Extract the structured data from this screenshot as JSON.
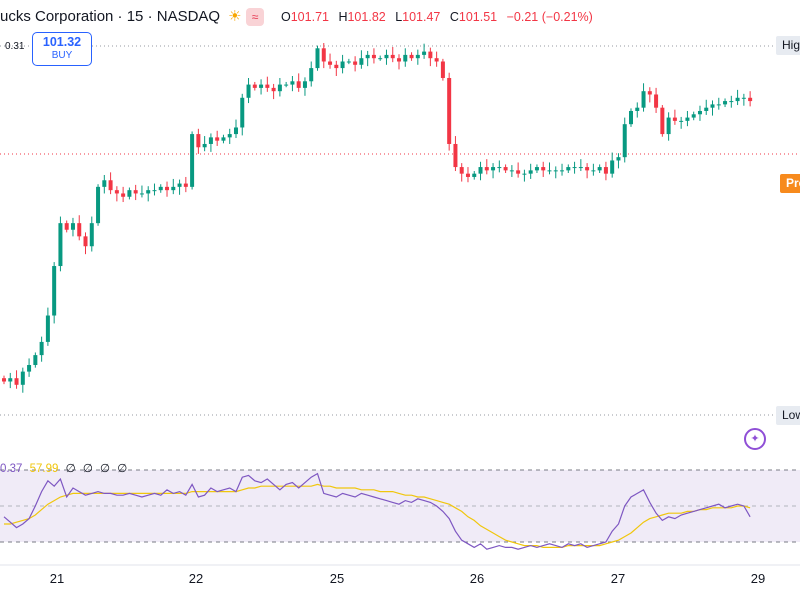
{
  "header": {
    "symbol_title": "ucks Corporation · 15 · NASDAQ",
    "icons": [
      "sun-icon",
      "session-icon"
    ],
    "ohlc": {
      "o_label": "O",
      "o_value": "101.71",
      "h_label": "H",
      "h_value": "101.82",
      "l_label": "L",
      "l_value": "101.47",
      "c_label": "C",
      "c_value": "101.51",
      "change": "−0.21 (−0.21%)"
    }
  },
  "order_widget": {
    "tick_value": "0.31",
    "price": "101.32",
    "label": "BUY"
  },
  "price_labels": {
    "high": "High",
    "low": "Low",
    "pre": "Pre"
  },
  "rsi": {
    "value": "0.37",
    "ma_value": "57.99",
    "empty_values": [
      "∅",
      "∅",
      "∅",
      "∅"
    ]
  },
  "colors": {
    "up": "#089981",
    "down": "#f23645",
    "rsi_line": "#7e57c2",
    "rsi_ma": "#f0c60d",
    "band": "#ede7f6"
  },
  "chart_data": {
    "type": "line",
    "x_ticks": [
      "21",
      "22",
      "25",
      "26",
      "27",
      "29"
    ],
    "price_series": [
      100.95,
      100.96,
      100.94,
      100.98,
      101.0,
      101.03,
      101.07,
      101.15,
      101.3,
      101.43,
      101.41,
      101.43,
      101.39,
      101.36,
      101.43,
      101.54,
      101.56,
      101.53,
      101.52,
      101.51,
      101.53,
      101.52,
      101.52,
      101.53,
      101.53,
      101.54,
      101.53,
      101.54,
      101.55,
      101.54,
      101.7,
      101.66,
      101.67,
      101.69,
      101.68,
      101.69,
      101.7,
      101.72,
      101.81,
      101.85,
      101.84,
      101.85,
      101.84,
      101.83,
      101.85,
      101.85,
      101.86,
      101.84,
      101.86,
      101.9,
      101.96,
      101.92,
      101.91,
      101.9,
      101.92,
      101.92,
      101.91,
      101.93,
      101.94,
      101.93,
      101.93,
      101.94,
      101.93,
      101.92,
      101.94,
      101.93,
      101.94,
      101.95,
      101.93,
      101.92,
      101.87,
      101.67,
      101.6,
      101.58,
      101.57,
      101.58,
      101.6,
      101.59,
      101.6,
      101.6,
      101.59,
      101.59,
      101.58,
      101.58,
      101.59,
      101.6,
      101.59,
      101.59,
      101.59,
      101.59,
      101.6,
      101.6,
      101.6,
      101.59,
      101.59,
      101.6,
      101.58,
      101.62,
      101.63,
      101.73,
      101.77,
      101.78,
      101.83,
      101.82,
      101.78,
      101.7,
      101.75,
      101.74,
      101.74,
      101.75,
      101.76,
      101.77,
      101.78,
      101.79,
      101.79,
      101.8,
      101.8,
      101.81,
      101.81,
      101.8
    ],
    "rsi_series": [
      44,
      41,
      38,
      40,
      43,
      50,
      58,
      64,
      61,
      65,
      55,
      60,
      58,
      56,
      57,
      58,
      57,
      57,
      56,
      56,
      57,
      56,
      55,
      56,
      57,
      56,
      59,
      57,
      58,
      56,
      62,
      55,
      56,
      60,
      58,
      59,
      60,
      58,
      66,
      67,
      64,
      63,
      65,
      62,
      59,
      62,
      63,
      60,
      63,
      66,
      68,
      57,
      56,
      55,
      57,
      56,
      55,
      57,
      56,
      55,
      54,
      53,
      52,
      51,
      53,
      52,
      54,
      53,
      52,
      50,
      47,
      43,
      36,
      31,
      29,
      27,
      29,
      26,
      27,
      28,
      27,
      27,
      26,
      27,
      28,
      27,
      28,
      29,
      28,
      27,
      29,
      28,
      29,
      27,
      28,
      29,
      30,
      36,
      40,
      50,
      55,
      57,
      59,
      52,
      46,
      42,
      44,
      43,
      45,
      46,
      47,
      48,
      49,
      50,
      51,
      49,
      50,
      51,
      50,
      44
    ],
    "rsi_ma_series": [
      40,
      40,
      41,
      42,
      43,
      45,
      48,
      51,
      53,
      55,
      56,
      57,
      57,
      57,
      57,
      57,
      57,
      57,
      57,
      57,
      57,
      57,
      57,
      57,
      57,
      57,
      57,
      57,
      57,
      57,
      58,
      58,
      58,
      58,
      58,
      58,
      58,
      58,
      59,
      60,
      60,
      61,
      61,
      61,
      61,
      61,
      61,
      61,
      61,
      61,
      62,
      61,
      61,
      60,
      60,
      60,
      60,
      59,
      59,
      59,
      58,
      58,
      58,
      57,
      56,
      56,
      55,
      55,
      54,
      53,
      52,
      51,
      49,
      47,
      44,
      42,
      39,
      37,
      35,
      33,
      31,
      30,
      29,
      28,
      28,
      28,
      27,
      27,
      27,
      27,
      28,
      28,
      28,
      28,
      28,
      28,
      29,
      30,
      31,
      33,
      35,
      38,
      41,
      43,
      44,
      45,
      46,
      46,
      46,
      47,
      47,
      48,
      48,
      49,
      49,
      49,
      49,
      50,
      50,
      49
    ],
    "rsi_bands": [
      70,
      30
    ],
    "rsi_ylim": [
      20,
      80
    ]
  }
}
